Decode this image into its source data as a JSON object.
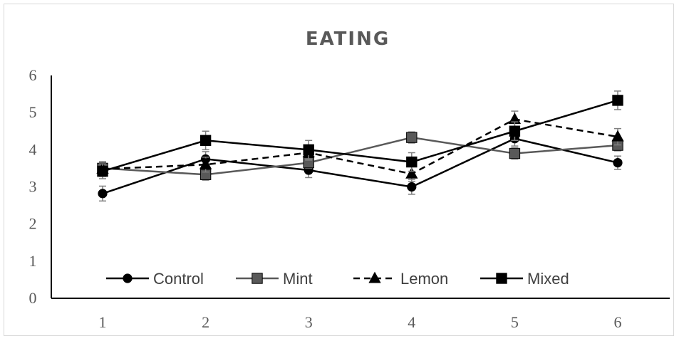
{
  "chart_data": {
    "type": "line",
    "title": "EATING",
    "xlabel": "",
    "ylabel": "",
    "categories": [
      "1",
      "2",
      "3",
      "4",
      "5",
      "6"
    ],
    "y_ticks": [
      "0",
      "1",
      "2",
      "3",
      "4",
      "5",
      "6"
    ],
    "ylim": [
      0,
      6
    ],
    "grid": false,
    "legend_position": "bottom (inside plot)",
    "series": [
      {
        "name": "Control",
        "values": [
          2.82,
          3.75,
          3.45,
          3.0,
          4.3,
          3.65
        ],
        "error": [
          0.2,
          0.2,
          0.2,
          0.2,
          0.2,
          0.18
        ],
        "marker": "circle",
        "dash": "solid",
        "color": "#000000"
      },
      {
        "name": "Mint",
        "values": [
          3.5,
          3.33,
          3.65,
          4.33,
          3.9,
          4.12
        ],
        "error": [
          0.15,
          0.15,
          0.15,
          0.15,
          0.15,
          0.15
        ],
        "marker": "square",
        "dash": "solid",
        "color": "#595959"
      },
      {
        "name": "Lemon",
        "values": [
          3.48,
          3.6,
          3.92,
          3.35,
          4.82,
          4.35
        ],
        "error": [
          0.2,
          0.2,
          0.2,
          0.2,
          0.22,
          0.22
        ],
        "marker": "triangle",
        "dash": "dashed",
        "color": "#000000"
      },
      {
        "name": "Mixed",
        "values": [
          3.42,
          4.25,
          4.0,
          3.67,
          4.5,
          5.33
        ],
        "error": [
          0.2,
          0.25,
          0.25,
          0.25,
          0.25,
          0.25
        ],
        "marker": "square",
        "dash": "solid",
        "color": "#000000"
      }
    ]
  }
}
